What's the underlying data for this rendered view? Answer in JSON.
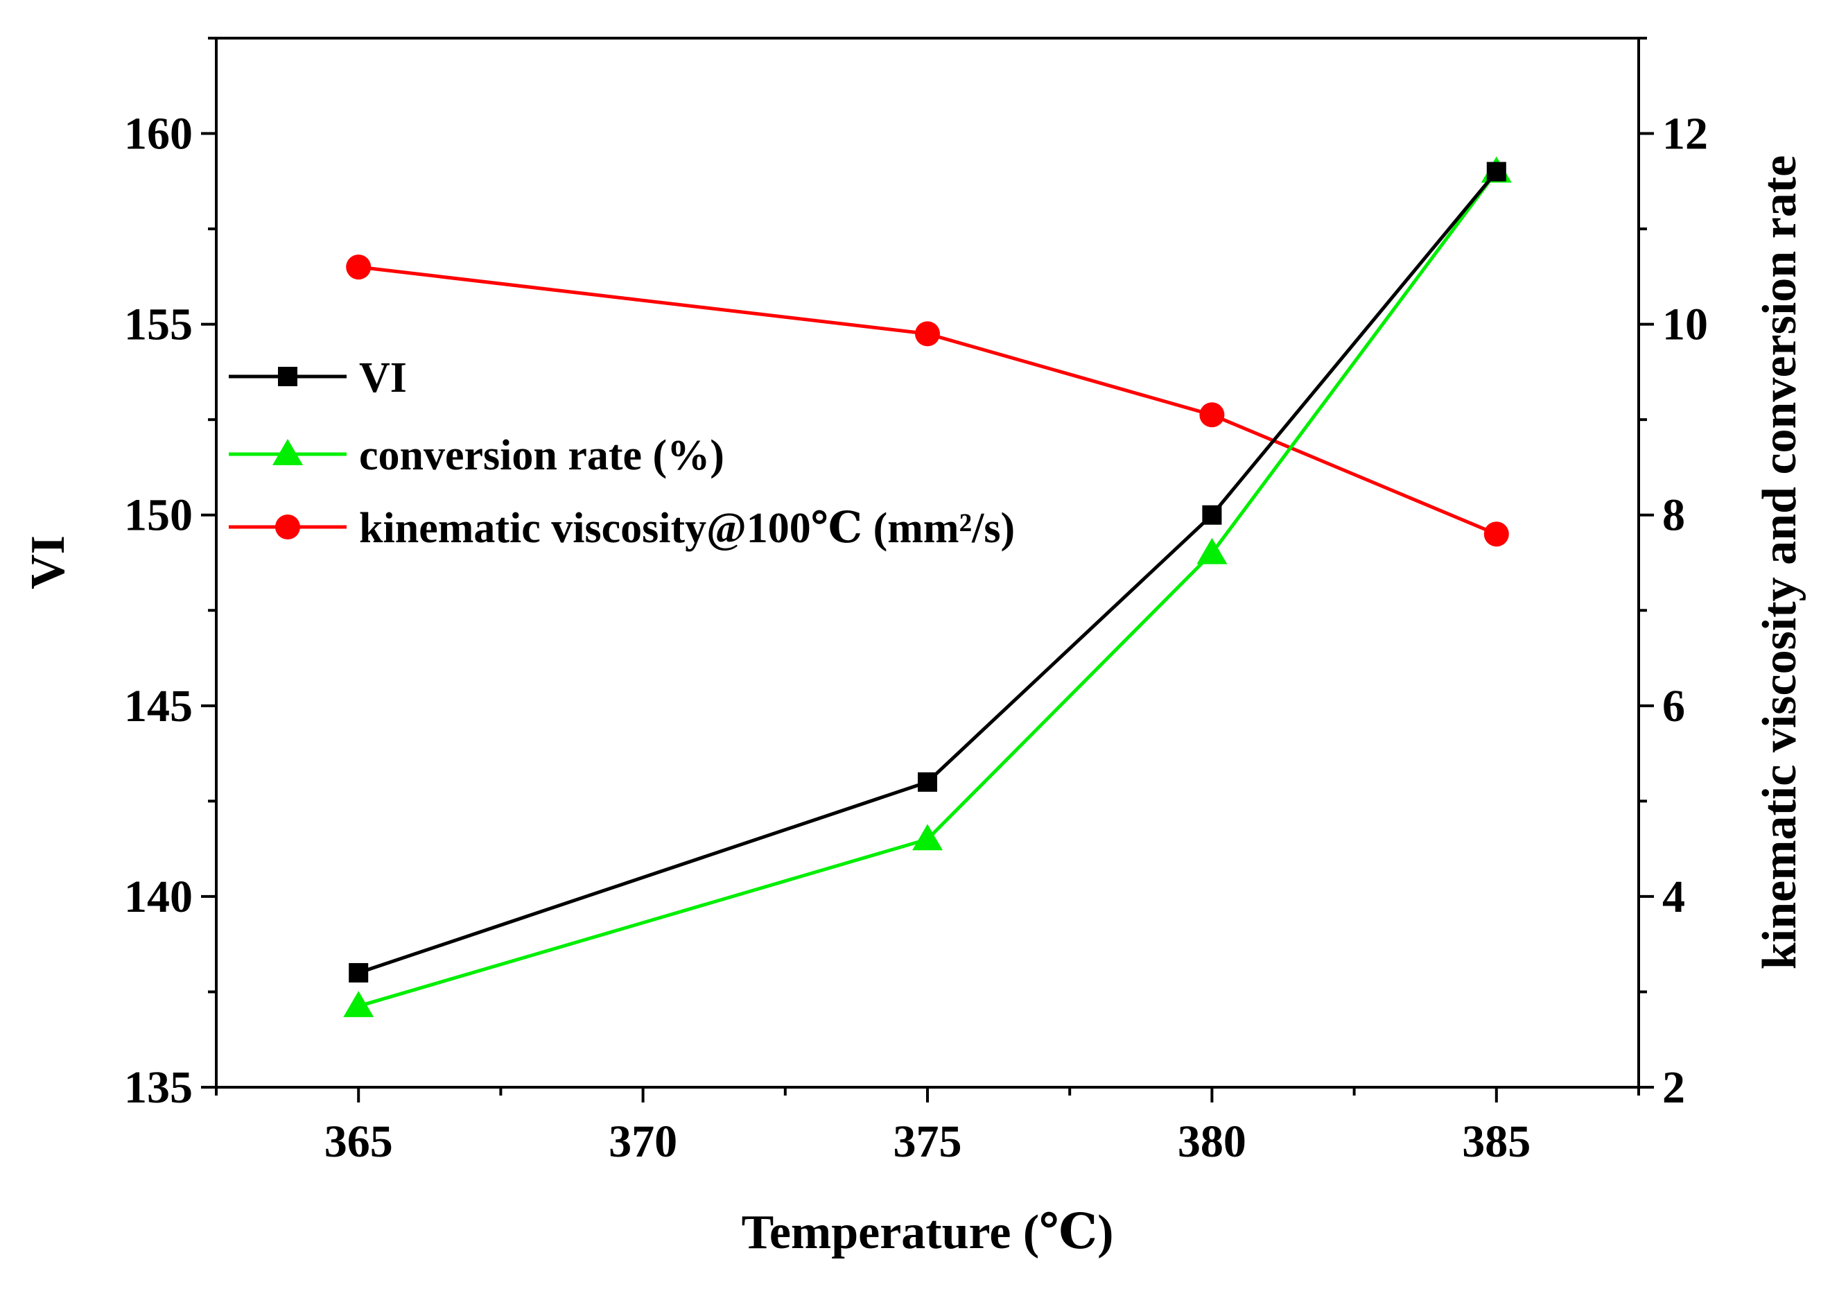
{
  "chart_data": {
    "type": "line",
    "xlabel": "Temperature (℃)",
    "ylabel_left": "VI",
    "ylabel_right": "kinematic viscosity and conversion rate",
    "x_ticks": [
      "365",
      "370",
      "375",
      "380",
      "385"
    ],
    "y_left_ticks": [
      "135",
      "140",
      "145",
      "150",
      "155",
      "160"
    ],
    "y_right_ticks": [
      "2",
      "4",
      "6",
      "8",
      "10",
      "12"
    ],
    "xlim": [
      362.5,
      387.5
    ],
    "ylim_left": [
      135,
      162.5
    ],
    "ylim_right": [
      2,
      13
    ],
    "grid": false,
    "legend_position": "upper-left",
    "series": [
      {
        "name": "VI",
        "axis": "left",
        "color": "#000000",
        "marker": "square",
        "x": [
          365,
          375,
          380,
          385
        ],
        "values": [
          138,
          143,
          150,
          159
        ]
      },
      {
        "name": "conversion rate (%)",
        "axis": "right",
        "color": "#00ee00",
        "marker": "triangle",
        "x": [
          365,
          375,
          380,
          385
        ],
        "values": [
          2.85,
          4.6,
          7.6,
          11.6
        ]
      },
      {
        "name": "kinematic viscosity@100℃ (mm²/s)",
        "axis": "right",
        "color": "#ff0000",
        "marker": "circle",
        "x": [
          365,
          375,
          380,
          385
        ],
        "values": [
          10.6,
          9.9,
          9.05,
          7.8
        ]
      }
    ]
  }
}
